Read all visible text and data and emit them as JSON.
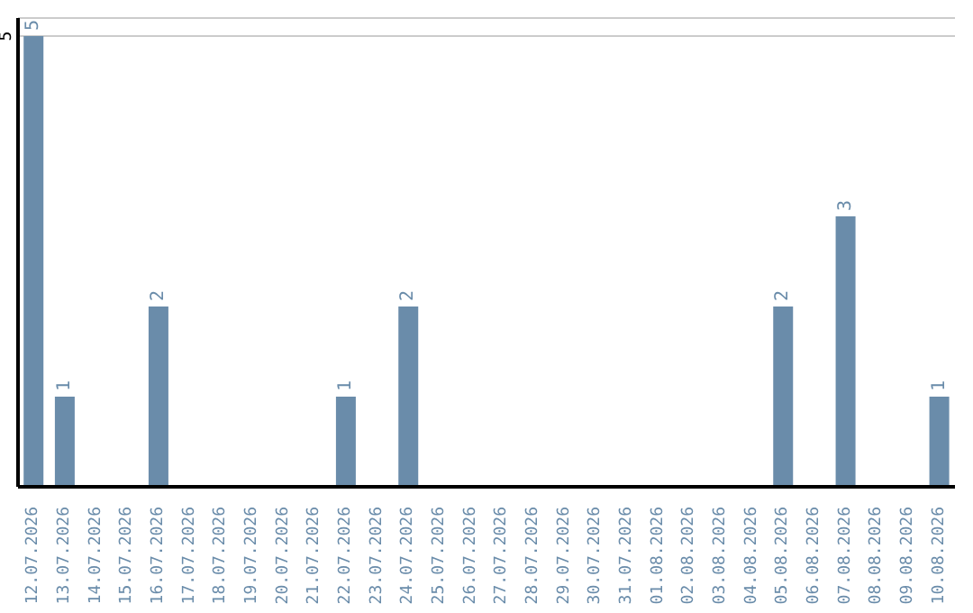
{
  "chart_data": {
    "type": "bar",
    "categories": [
      "12.07.2026",
      "13.07.2026",
      "14.07.2026",
      "15.07.2026",
      "16.07.2026",
      "17.07.2026",
      "18.07.2026",
      "19.07.2026",
      "20.07.2026",
      "21.07.2026",
      "22.07.2026",
      "23.07.2026",
      "24.07.2026",
      "25.07.2026",
      "26.07.2026",
      "27.07.2026",
      "28.07.2026",
      "29.07.2026",
      "30.07.2026",
      "31.07.2026",
      "01.08.2026",
      "02.08.2026",
      "03.08.2026",
      "04.08.2026",
      "05.08.2026",
      "06.08.2026",
      "07.08.2026",
      "08.08.2026",
      "09.08.2026",
      "10.08.2026"
    ],
    "values": [
      5,
      1,
      0,
      0,
      2,
      0,
      0,
      0,
      0,
      0,
      1,
      0,
      2,
      0,
      0,
      0,
      0,
      0,
      0,
      0,
      0,
      0,
      0,
      0,
      2,
      0,
      3,
      0,
      0,
      1
    ],
    "value_labels": [
      "5",
      "1",
      null,
      null,
      "2",
      null,
      null,
      null,
      null,
      null,
      "1",
      null,
      "2",
      null,
      null,
      null,
      null,
      null,
      null,
      null,
      null,
      null,
      null,
      null,
      "2",
      null,
      "3",
      null,
      null,
      "1"
    ],
    "color": "#6a8caa",
    "ylim": [
      0,
      5.2
    ],
    "yticks": [
      5
    ],
    "grid": "y"
  }
}
